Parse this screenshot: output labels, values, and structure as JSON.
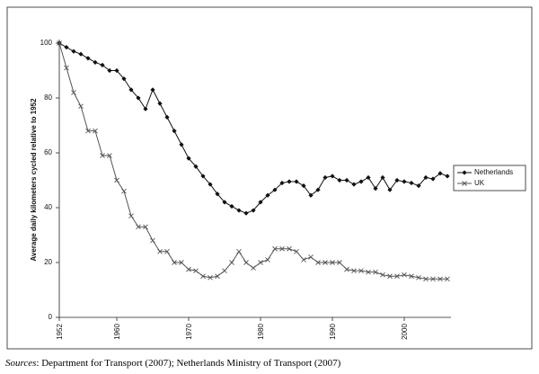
{
  "chart_data": {
    "type": "line",
    "y_label": "Average daily kilometers cycled relative to 1952",
    "source_label": "Sources",
    "source_text": ": Department for Transport (2007); Netherlands Ministry of Transport (2007)",
    "x": [
      1952,
      1953,
      1954,
      1955,
      1956,
      1957,
      1958,
      1959,
      1960,
      1961,
      1962,
      1963,
      1964,
      1965,
      1966,
      1967,
      1968,
      1969,
      1970,
      1971,
      1972,
      1973,
      1974,
      1975,
      1976,
      1977,
      1978,
      1979,
      1980,
      1981,
      1982,
      1983,
      1984,
      1985,
      1986,
      1987,
      1988,
      1989,
      1990,
      1991,
      1992,
      1993,
      1994,
      1995,
      1996,
      1997,
      1998,
      1999,
      2000,
      2001,
      2002,
      2003,
      2004,
      2005,
      2006
    ],
    "series": [
      {
        "name": "Netherlands",
        "color": "#111111",
        "marker": "diamond",
        "values": [
          100,
          98.5,
          97,
          96,
          94.5,
          93,
          92,
          90,
          90,
          87,
          83,
          80,
          76,
          83,
          78,
          73,
          68,
          63,
          58,
          55,
          51.5,
          48.5,
          45,
          42,
          40.5,
          39,
          38,
          39,
          42,
          44.5,
          46.5,
          49,
          49.5,
          49.5,
          48,
          44.5,
          46.5,
          51,
          51.5,
          50,
          50,
          48.5,
          49.5,
          51,
          47,
          51,
          46.5,
          50,
          49.5,
          49,
          48,
          51,
          50.5,
          52.5,
          51.5
        ]
      },
      {
        "name": "UK",
        "color": "#555555",
        "marker": "x",
        "values": [
          100,
          91,
          82,
          77,
          68,
          68,
          59,
          59,
          50,
          46,
          37,
          33,
          33,
          28,
          24,
          24,
          20,
          20,
          17.5,
          17,
          15,
          14.5,
          15,
          17,
          20,
          24,
          20,
          18,
          20,
          21,
          25,
          25,
          25,
          24,
          21,
          22,
          20,
          20,
          20,
          20,
          17.5,
          17,
          17,
          16.5,
          16.5,
          15.5,
          15,
          15,
          15.5,
          15,
          14.5,
          14,
          14,
          14,
          14
        ]
      }
    ],
    "xlim": [
      1952,
      2006
    ],
    "xticks": [
      1952,
      1960,
      1970,
      1980,
      1990,
      2000
    ],
    "ylim": [
      0,
      100
    ],
    "yticks": [
      0,
      20,
      40,
      60,
      80,
      100
    ],
    "grid": false,
    "legend": "right"
  }
}
